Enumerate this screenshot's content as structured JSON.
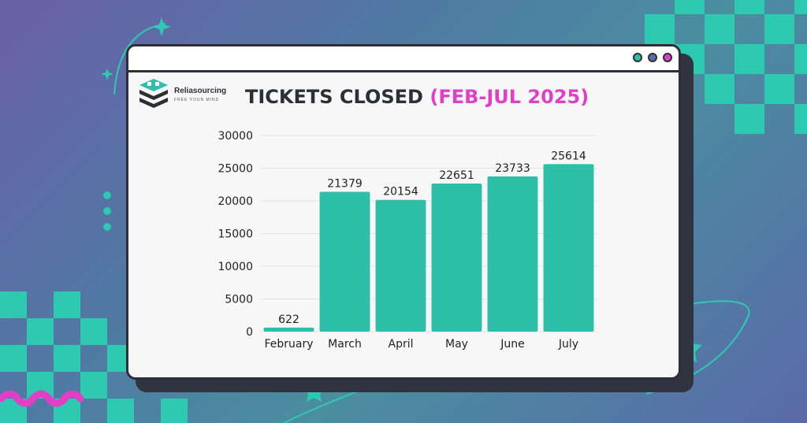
{
  "brand": {
    "name": "Reliasourcing",
    "tagline": "FREE YOUR MIND",
    "logo_icon": "layered-cube-icon"
  },
  "window": {
    "controls": [
      {
        "name": "green-dot-icon",
        "color": "#2bbfa3"
      },
      {
        "name": "blue-dot-icon",
        "color": "#5a6fa8"
      },
      {
        "name": "magenta-dot-icon",
        "color": "#e23fc8"
      }
    ]
  },
  "colors": {
    "bar": "#2dbfa8",
    "accent": "#e23fc8",
    "title": "#2e2e36"
  },
  "chart_data": {
    "type": "bar",
    "title": "TICKETS CLOSED",
    "subtitle": "(FEB-JUL 2025)",
    "categories": [
      "February",
      "March",
      "April",
      "May",
      "June",
      "July"
    ],
    "values": [
      622,
      21379,
      20154,
      22651,
      23733,
      25614
    ],
    "data_labels": [
      "622",
      "21379",
      "20154",
      "22651",
      "23733",
      "25614"
    ],
    "yticks": [
      "0",
      "5000",
      "10000",
      "15000",
      "20000",
      "25000",
      "30000"
    ],
    "ylim": [
      0,
      30000
    ],
    "xlabel": "",
    "ylabel": "",
    "grid": true,
    "legend": "none"
  }
}
